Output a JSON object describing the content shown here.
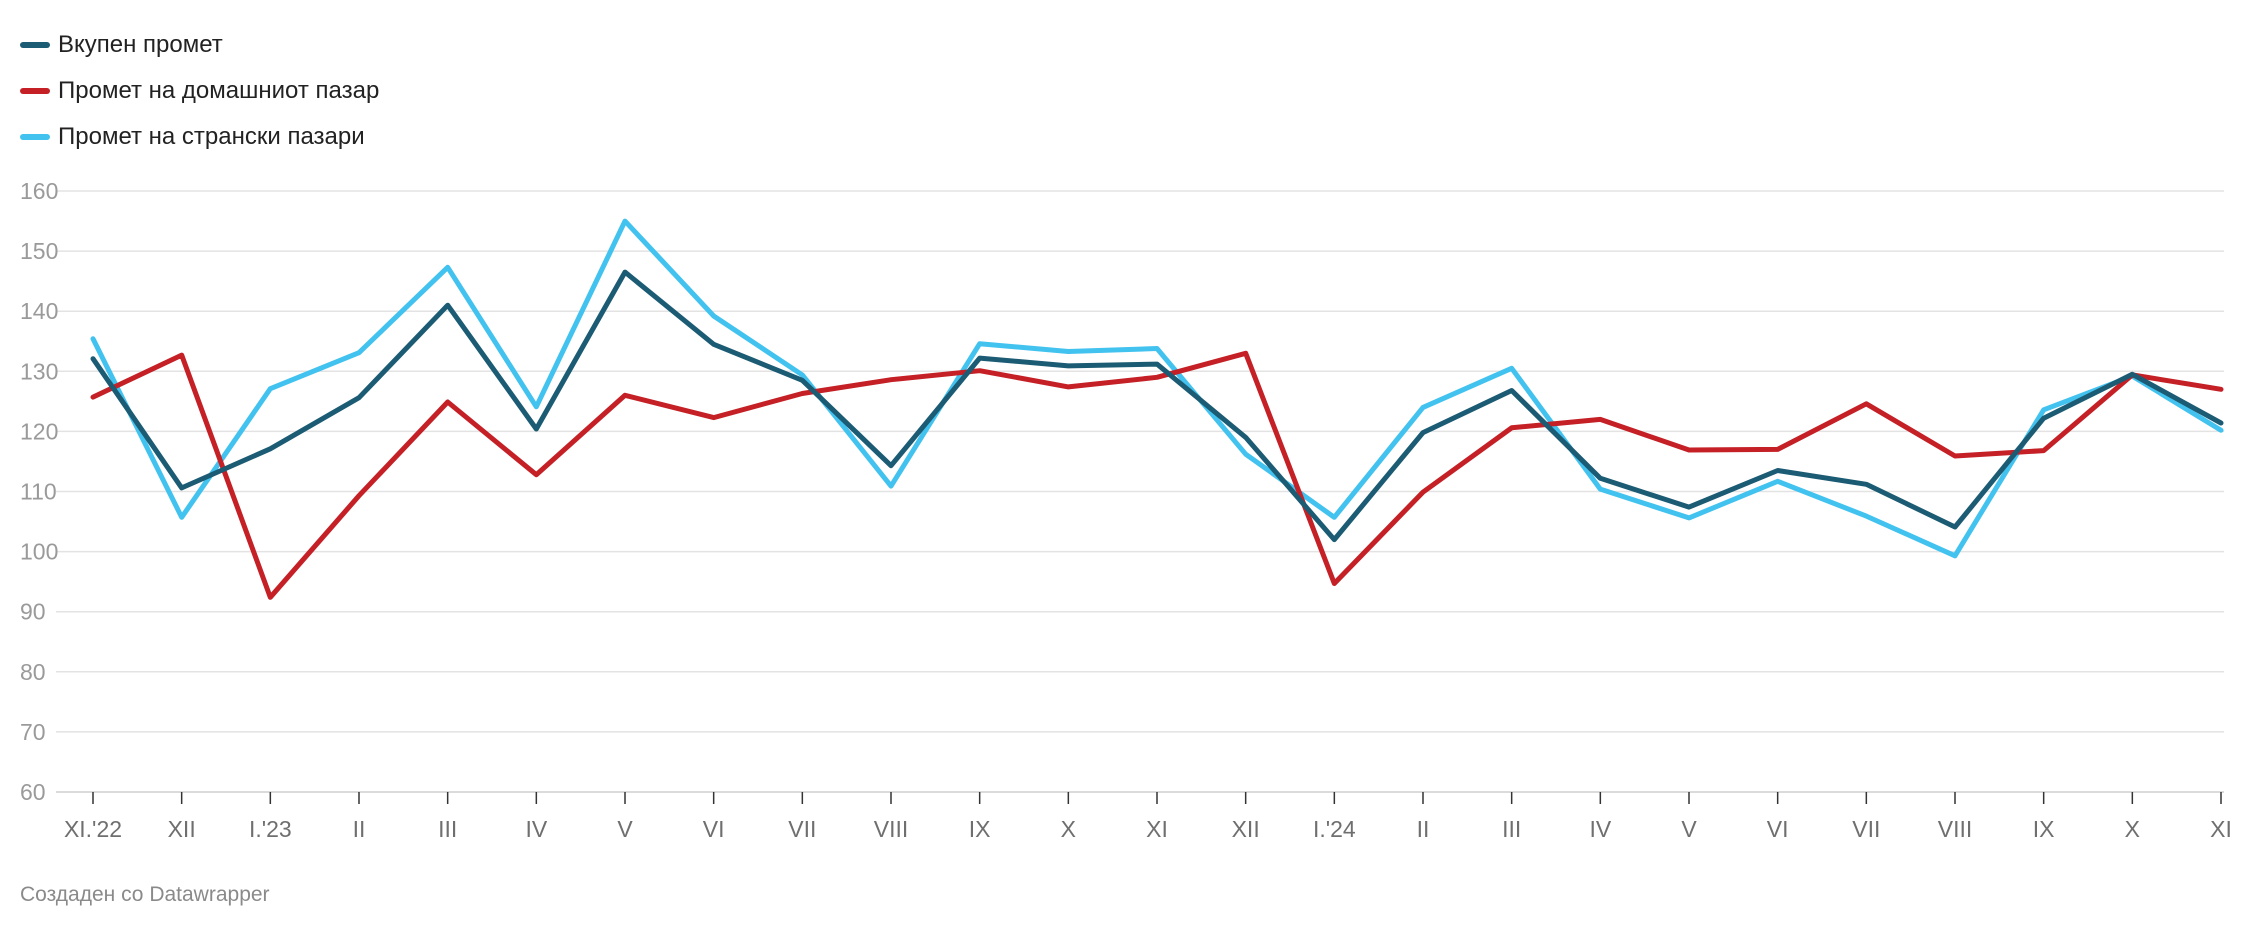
{
  "legend": [
    {
      "label": "Вкупен промет",
      "color": "#1b5b73"
    },
    {
      "label": "Промет на домашниот пазар",
      "color": "#c42026"
    },
    {
      "label": "Промет на странски пазари",
      "color": "#42c2ef"
    }
  ],
  "footer": "Создаден со Datawrapper",
  "chart_data": {
    "type": "line",
    "title": "",
    "xlabel": "",
    "ylabel": "",
    "ylim": [
      60,
      160
    ],
    "yticks": [
      60,
      70,
      80,
      90,
      100,
      110,
      120,
      130,
      140,
      150,
      160
    ],
    "grid": true,
    "legend_position": "top-left",
    "categories": [
      "XI.'22",
      "XII",
      "I.'23",
      "II",
      "III",
      "IV",
      "V",
      "VI",
      "VII",
      "VIII",
      "IX",
      "X",
      "XI",
      "XII",
      "I.'24",
      "II",
      "III",
      "IV",
      "V",
      "VI",
      "VII",
      "VIII",
      "IX",
      "X",
      "XI"
    ],
    "series": [
      {
        "name": "Вкупен промет",
        "color": "#1b5b73",
        "values": [
          132.1,
          110.6,
          117.1,
          125.6,
          141.0,
          120.4,
          146.5,
          134.5,
          128.5,
          114.3,
          132.2,
          130.9,
          131.2,
          119.0,
          102.0,
          119.8,
          126.8,
          112.2,
          107.4,
          113.5,
          111.2,
          104.1,
          122.2,
          129.5,
          121.4
        ]
      },
      {
        "name": "Промет на домашниот пазар",
        "color": "#c42026",
        "values": [
          125.7,
          132.7,
          92.4,
          109.3,
          124.9,
          112.8,
          126.0,
          122.3,
          126.3,
          128.6,
          130.1,
          127.4,
          129.0,
          133.0,
          94.7,
          109.9,
          120.6,
          122.0,
          116.9,
          117.0,
          124.6,
          115.9,
          116.8,
          129.4,
          127.0
        ]
      },
      {
        "name": "Промет на странски пазари",
        "color": "#42c2ef",
        "values": [
          135.4,
          105.7,
          127.1,
          133.1,
          147.3,
          124.1,
          155.0,
          139.2,
          129.4,
          110.9,
          134.6,
          133.3,
          133.8,
          116.2,
          105.7,
          124.0,
          130.5,
          110.4,
          105.6,
          111.7,
          105.9,
          99.3,
          123.6,
          129.2,
          120.2
        ]
      }
    ]
  }
}
